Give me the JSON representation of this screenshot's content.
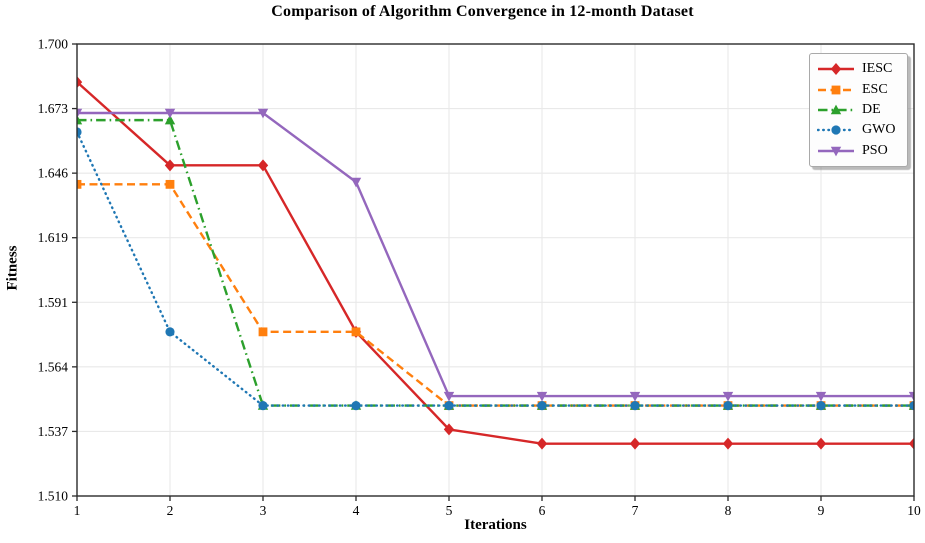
{
  "chart_data": {
    "type": "line",
    "title": "Comparison of Algorithm Convergence in 12-month Dataset",
    "xlabel": "Iterations",
    "ylabel": "Fitness",
    "x": [
      1,
      2,
      3,
      4,
      5,
      6,
      7,
      8,
      9,
      10
    ],
    "xlim": [
      1,
      10
    ],
    "ylim": [
      1.51,
      1.7
    ],
    "x_tick_labels": [
      "1",
      "2",
      "3",
      "4",
      "5",
      "6",
      "7",
      "8",
      "9",
      "10"
    ],
    "y_tick_labels": [
      "1.510",
      "1.537",
      "1.564",
      "1.591",
      "1.619",
      "1.646",
      "1.673",
      "1.700"
    ],
    "grid": true,
    "grid_color": "#e9e9e9",
    "axis_color": "#2b2b2b",
    "legend_position": "upper-right",
    "series": [
      {
        "name": "IESC",
        "color": "#d62728",
        "line_style": "solid",
        "marker": "diamond",
        "values": [
          1.684,
          1.649,
          1.649,
          1.579,
          1.538,
          1.532,
          1.532,
          1.532,
          1.532,
          1.532
        ]
      },
      {
        "name": "ESC",
        "color": "#ff7f0e",
        "line_style": "dashed",
        "marker": "square",
        "values": [
          1.641,
          1.641,
          1.579,
          1.579,
          1.548,
          1.548,
          1.548,
          1.548,
          1.548,
          1.548
        ]
      },
      {
        "name": "DE",
        "color": "#2ca02c",
        "line_style": "dash-dot",
        "marker": "triangle-up",
        "values": [
          1.668,
          1.668,
          1.548,
          1.548,
          1.548,
          1.548,
          1.548,
          1.548,
          1.548,
          1.548
        ]
      },
      {
        "name": "GWO",
        "color": "#1f77b4",
        "line_style": "dotted",
        "marker": "circle",
        "values": [
          1.663,
          1.579,
          1.548,
          1.548,
          1.548,
          1.548,
          1.548,
          1.548,
          1.548,
          1.548
        ]
      },
      {
        "name": "PSO",
        "color": "#9467bd",
        "line_style": "solid",
        "marker": "triangle-down",
        "values": [
          1.671,
          1.671,
          1.671,
          1.642,
          1.552,
          1.552,
          1.552,
          1.552,
          1.552,
          1.552
        ]
      }
    ]
  }
}
